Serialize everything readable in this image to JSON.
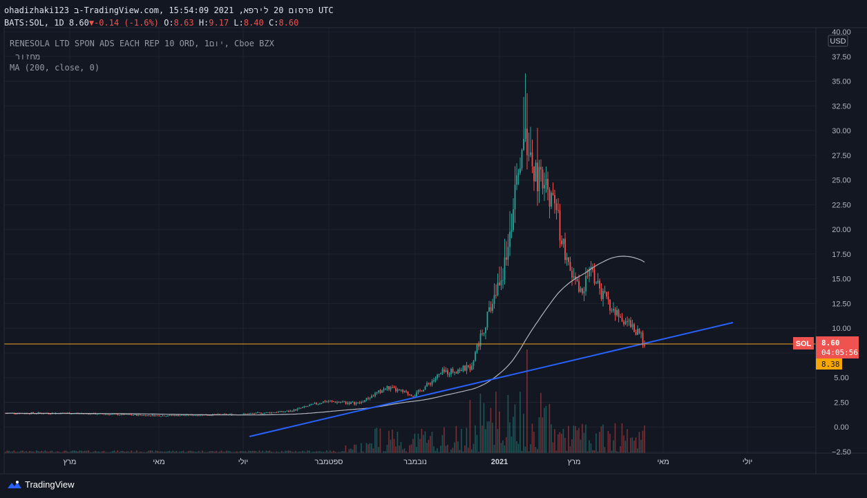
{
  "header": {
    "line1": "ohadizhaki123 ב-TradingView.com, פרסום 20 לירפא, 2021 15:54:09 UTC",
    "symbol_info": "BATS:SOL, 1D 8.60",
    "change": "-0.14 (-1.6%)",
    "o_label": "O:",
    "o_value": "8.63",
    "h_label": "H:",
    "h_value": "9.17",
    "l_label": "L:",
    "l_value": "8.40",
    "c_label": "C:",
    "c_value": "8.60"
  },
  "legend": {
    "title": "RENESOLA LTD SPON ADS EACH REP 10 ORD, 1יום, Cboe BZX",
    "volume": "מחזור",
    "ma": "MA (200, close, 0)"
  },
  "price_axis": {
    "currency": "USD",
    "ticks": [
      "40.00",
      "37.50",
      "35.00",
      "32.50",
      "30.00",
      "27.50",
      "25.00",
      "22.50",
      "20.00",
      "17.50",
      "15.00",
      "12.50",
      "10.00",
      "7.50",
      "5.00",
      "2.50",
      "0.00",
      "−2.50"
    ],
    "symbol_tag": "SOL",
    "last_price": "8.60",
    "countdown": "04:05:56",
    "ma_value": "8.38"
  },
  "time_axis": {
    "labels": [
      "מרץ",
      "מאי",
      "יולי",
      "ספטמבר",
      "נובמבר",
      "2021",
      "מרץ",
      "מאי",
      "יולי"
    ]
  },
  "brand": {
    "name": "TradingView"
  },
  "colors": {
    "background": "#131722",
    "up": "#26a69a",
    "down": "#ef5350",
    "trendline": "#2962ff",
    "price_line": "#f5a623",
    "ma_line": "#b2b5be",
    "last_price_badge": "#ef5350",
    "ma_badge": "#f7a600"
  },
  "chart_data": {
    "type": "candlestick",
    "symbol": "BATS:SOL",
    "interval": "1D",
    "ylim": [
      -2.5,
      40
    ],
    "approx_close_path": [
      {
        "x": "מרץ",
        "y": 1.4
      },
      {
        "x": "מאי",
        "y": 1.2
      },
      {
        "x": "יולי",
        "y": 1.3
      },
      {
        "x": "ספטמבר",
        "y": 2.5
      },
      {
        "x": "נובמבר",
        "y": 4.0
      },
      {
        "x": "2021",
        "y": 15.0
      },
      {
        "x": "2021",
        "y": 35.5
      },
      {
        "x": "מרץ",
        "y": 16.0
      },
      {
        "x": "מאי",
        "y": 8.6
      }
    ],
    "last_close": 8.6,
    "ma200_last": 8.38
  }
}
